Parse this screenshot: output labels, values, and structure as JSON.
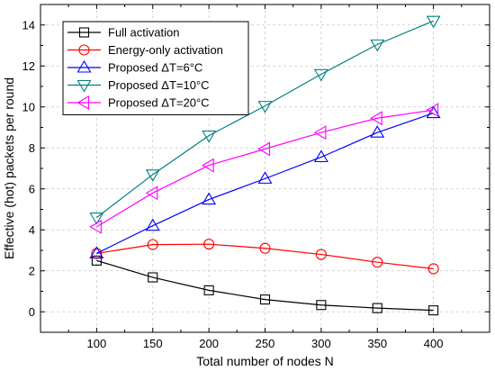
{
  "chart_data": {
    "type": "line",
    "title": "",
    "xlabel": "Total number of nodes N",
    "ylabel": "Effective (hot) packets per round",
    "x": [
      100,
      150,
      200,
      250,
      300,
      350,
      400
    ],
    "xlim": [
      50,
      450
    ],
    "ylim": [
      -1,
      15
    ],
    "xticks": [
      100,
      150,
      200,
      250,
      300,
      350,
      400
    ],
    "yticks": [
      0,
      2,
      4,
      6,
      8,
      10,
      12,
      14
    ],
    "grid": true,
    "legend_position": "top-left",
    "series": [
      {
        "name": "Full activation",
        "color": "#000000",
        "marker": "square",
        "values": [
          2.5,
          1.68,
          1.05,
          0.6,
          0.33,
          0.18,
          0.07
        ]
      },
      {
        "name": "Energy-only activation",
        "color": "#ff0000",
        "marker": "circle",
        "values": [
          2.85,
          3.28,
          3.3,
          3.1,
          2.8,
          2.42,
          2.1
        ]
      },
      {
        "name": "Proposed ΔT=6°C",
        "color": "#0000ff",
        "marker": "triangle-up",
        "values": [
          2.85,
          4.2,
          5.48,
          6.5,
          7.55,
          8.75,
          9.7
        ]
      },
      {
        "name": "Proposed ΔT=10°C",
        "color": "#008080",
        "marker": "triangle-down",
        "values": [
          4.6,
          6.7,
          8.6,
          10.05,
          11.6,
          13.05,
          14.2
        ]
      },
      {
        "name": "Proposed ΔT=20°C",
        "color": "#ff00ff",
        "marker": "triangle-left",
        "values": [
          4.15,
          5.8,
          7.15,
          7.95,
          8.75,
          9.45,
          9.85
        ]
      }
    ]
  }
}
